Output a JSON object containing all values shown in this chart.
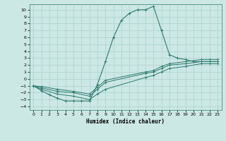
{
  "xlabel": "Humidex (Indice chaleur)",
  "xlim": [
    -0.5,
    23.5
  ],
  "ylim": [
    -4.5,
    10.8
  ],
  "xticks": [
    0,
    1,
    2,
    3,
    4,
    5,
    6,
    7,
    8,
    9,
    10,
    11,
    12,
    13,
    14,
    15,
    16,
    17,
    18,
    19,
    20,
    21,
    22,
    23
  ],
  "yticks": [
    -4,
    -3,
    -2,
    -1,
    0,
    1,
    2,
    3,
    4,
    5,
    6,
    7,
    8,
    9,
    10
  ],
  "bg_color": "#cce8e4",
  "grid_color": "#b0d4d0",
  "line_color": "#2d7a6e",
  "lines": [
    {
      "x": [
        0,
        1,
        2,
        3,
        4,
        5,
        6,
        7,
        8,
        9,
        10,
        11,
        12,
        13,
        14,
        15,
        16,
        17,
        18,
        19,
        20,
        21,
        22,
        23
      ],
      "y": [
        -1.0,
        -1.7,
        -2.3,
        -2.8,
        -3.2,
        -3.2,
        -3.2,
        -3.2,
        -0.8,
        2.5,
        6.0,
        8.5,
        9.5,
        10.0,
        10.0,
        10.5,
        7.0,
        3.5,
        3.0,
        2.8,
        2.5,
        2.5,
        2.5,
        2.5
      ]
    },
    {
      "x": [
        0,
        1,
        3,
        5,
        7,
        8,
        9,
        14,
        15,
        16,
        17,
        19,
        21,
        22,
        23
      ],
      "y": [
        -1.0,
        -1.3,
        -1.8,
        -2.0,
        -2.5,
        -1.5,
        -0.5,
        0.8,
        1.0,
        1.5,
        2.0,
        2.2,
        2.5,
        2.5,
        2.5
      ]
    },
    {
      "x": [
        0,
        1,
        3,
        5,
        7,
        8,
        9,
        14,
        15,
        16,
        17,
        19,
        21,
        22,
        23
      ],
      "y": [
        -1.0,
        -1.5,
        -2.2,
        -2.5,
        -3.0,
        -2.2,
        -1.5,
        0.2,
        0.5,
        1.0,
        1.5,
        1.8,
        2.2,
        2.2,
        2.2
      ]
    },
    {
      "x": [
        0,
        1,
        3,
        5,
        7,
        8,
        9,
        14,
        15,
        16,
        17,
        19,
        21,
        22,
        23
      ],
      "y": [
        -1.0,
        -1.1,
        -1.5,
        -1.8,
        -2.2,
        -1.2,
        -0.2,
        1.0,
        1.2,
        1.8,
        2.2,
        2.5,
        2.8,
        2.8,
        2.8
      ]
    }
  ]
}
